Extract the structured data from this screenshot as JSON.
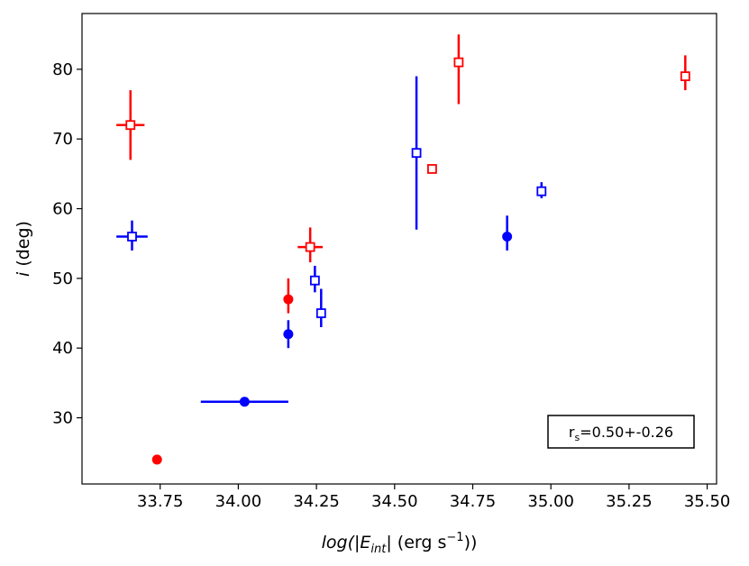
{
  "chart_data": {
    "type": "scatter",
    "title": "",
    "xlabel": {
      "prefix": "log(|",
      "symbol": "E",
      "subscript": "int",
      "units_open": "| (erg s",
      "exponent": "−1",
      "units_close": "))"
    },
    "ylabel": {
      "symbol": "i",
      "units": " (deg)"
    },
    "xlim": [
      33.5,
      35.53
    ],
    "ylim": [
      20.5,
      88
    ],
    "xticks": [
      "33.75",
      "34.00",
      "34.25",
      "34.50",
      "34.75",
      "35.00",
      "35.25",
      "35.50"
    ],
    "yticks": [
      "30",
      "40",
      "50",
      "60",
      "70",
      "80"
    ],
    "grid": false,
    "annotation": {
      "symbol": "r",
      "subscript": "s",
      "text": "=0.50+-0.26",
      "position": "lower-right"
    },
    "series": [
      {
        "color": "#ff0000",
        "marker": "filled-circle",
        "points": [
          {
            "x": 33.74,
            "y": 24.0
          },
          {
            "x": 34.16,
            "y": 47.0,
            "ylo": 45.0,
            "yhi": 50.0
          }
        ]
      },
      {
        "color": "#0000ff",
        "marker": "filled-circle",
        "points": [
          {
            "x": 34.02,
            "y": 32.3,
            "xlo": 33.88,
            "xhi": 34.16,
            "ylo": 31.8,
            "yhi": 32.9
          },
          {
            "x": 34.16,
            "y": 42.0,
            "ylo": 40.0,
            "yhi": 44.0
          },
          {
            "x": 34.86,
            "y": 56.0,
            "ylo": 54.0,
            "yhi": 59.0
          }
        ]
      },
      {
        "color": "#ff0000",
        "marker": "open-square",
        "points": [
          {
            "x": 33.655,
            "y": 72.0,
            "xlo": 33.61,
            "xhi": 33.7,
            "ylo": 67.0,
            "yhi": 77.0
          },
          {
            "x": 34.23,
            "y": 54.5,
            "xlo": 34.19,
            "xhi": 34.27,
            "ylo": 52.3,
            "yhi": 57.3
          },
          {
            "x": 34.62,
            "y": 65.7
          },
          {
            "x": 34.705,
            "y": 81.0,
            "ylo": 75.0,
            "yhi": 85.0
          },
          {
            "x": 35.43,
            "y": 79.0,
            "ylo": 77.0,
            "yhi": 82.0
          }
        ]
      },
      {
        "color": "#0000ff",
        "marker": "open-square",
        "points": [
          {
            "x": 33.66,
            "y": 56.0,
            "xlo": 33.61,
            "xhi": 33.71,
            "ylo": 54.0,
            "yhi": 58.3
          },
          {
            "x": 34.245,
            "y": 49.7,
            "ylo": 48.0,
            "yhi": 51.8
          },
          {
            "x": 34.265,
            "y": 45.0,
            "ylo": 43.0,
            "yhi": 48.5
          },
          {
            "x": 34.57,
            "y": 68.0,
            "ylo": 57.0,
            "yhi": 79.0
          },
          {
            "x": 34.97,
            "y": 62.5,
            "ylo": 61.5,
            "yhi": 63.8
          }
        ]
      }
    ]
  }
}
